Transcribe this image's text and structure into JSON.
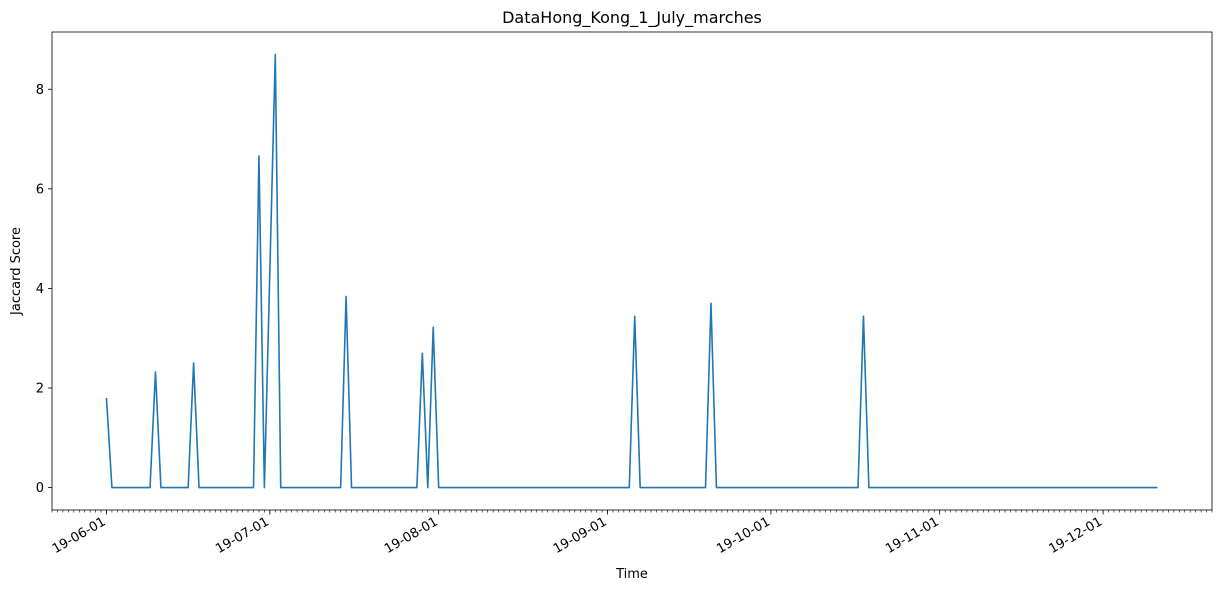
{
  "chart_data": {
    "type": "line",
    "title": "DataHong_Kong_1_July_marches",
    "xlabel": "Time",
    "ylabel": "Jaccard Score",
    "xlim": [
      "2019-05-22",
      "2019-12-21"
    ],
    "ylim": [
      -0.45,
      9.15
    ],
    "grid": false,
    "y_ticks": [
      0,
      2,
      4,
      6,
      8
    ],
    "x_ticks": [
      {
        "date": "2019-06-01",
        "label": "19-06-01"
      },
      {
        "date": "2019-07-01",
        "label": "19-07-01"
      },
      {
        "date": "2019-08-01",
        "label": "19-08-01"
      },
      {
        "date": "2019-09-01",
        "label": "19-09-01"
      },
      {
        "date": "2019-10-01",
        "label": "19-10-01"
      },
      {
        "date": "2019-11-01",
        "label": "19-11-01"
      },
      {
        "date": "2019-12-01",
        "label": "19-12-01"
      }
    ],
    "series": [
      {
        "color": "#1f77b4",
        "points": [
          {
            "x": "2019-06-01",
            "y": 1.8
          },
          {
            "x": "2019-06-02",
            "y": 0
          },
          {
            "x": "2019-06-09",
            "y": 0
          },
          {
            "x": "2019-06-10",
            "y": 2.32
          },
          {
            "x": "2019-06-11",
            "y": 0
          },
          {
            "x": "2019-06-16",
            "y": 0
          },
          {
            "x": "2019-06-17",
            "y": 2.5
          },
          {
            "x": "2019-06-18",
            "y": 0
          },
          {
            "x": "2019-06-28",
            "y": 0
          },
          {
            "x": "2019-06-29",
            "y": 6.66
          },
          {
            "x": "2019-06-30",
            "y": 0
          },
          {
            "x": "2019-07-02",
            "y": 8.7
          },
          {
            "x": "2019-07-03",
            "y": 0
          },
          {
            "x": "2019-07-14",
            "y": 0
          },
          {
            "x": "2019-07-15",
            "y": 3.84
          },
          {
            "x": "2019-07-16",
            "y": 0
          },
          {
            "x": "2019-07-28",
            "y": 0
          },
          {
            "x": "2019-07-29",
            "y": 2.7
          },
          {
            "x": "2019-07-30",
            "y": 0
          },
          {
            "x": "2019-07-31",
            "y": 3.22
          },
          {
            "x": "2019-08-01",
            "y": 0
          },
          {
            "x": "2019-09-05",
            "y": 0
          },
          {
            "x": "2019-09-06",
            "y": 3.44
          },
          {
            "x": "2019-09-07",
            "y": 0
          },
          {
            "x": "2019-09-19",
            "y": 0
          },
          {
            "x": "2019-09-20",
            "y": 3.7
          },
          {
            "x": "2019-09-21",
            "y": 0
          },
          {
            "x": "2019-10-17",
            "y": 0
          },
          {
            "x": "2019-10-18",
            "y": 3.44
          },
          {
            "x": "2019-10-19",
            "y": 0
          },
          {
            "x": "2019-12-11",
            "y": 0
          }
        ]
      }
    ]
  }
}
